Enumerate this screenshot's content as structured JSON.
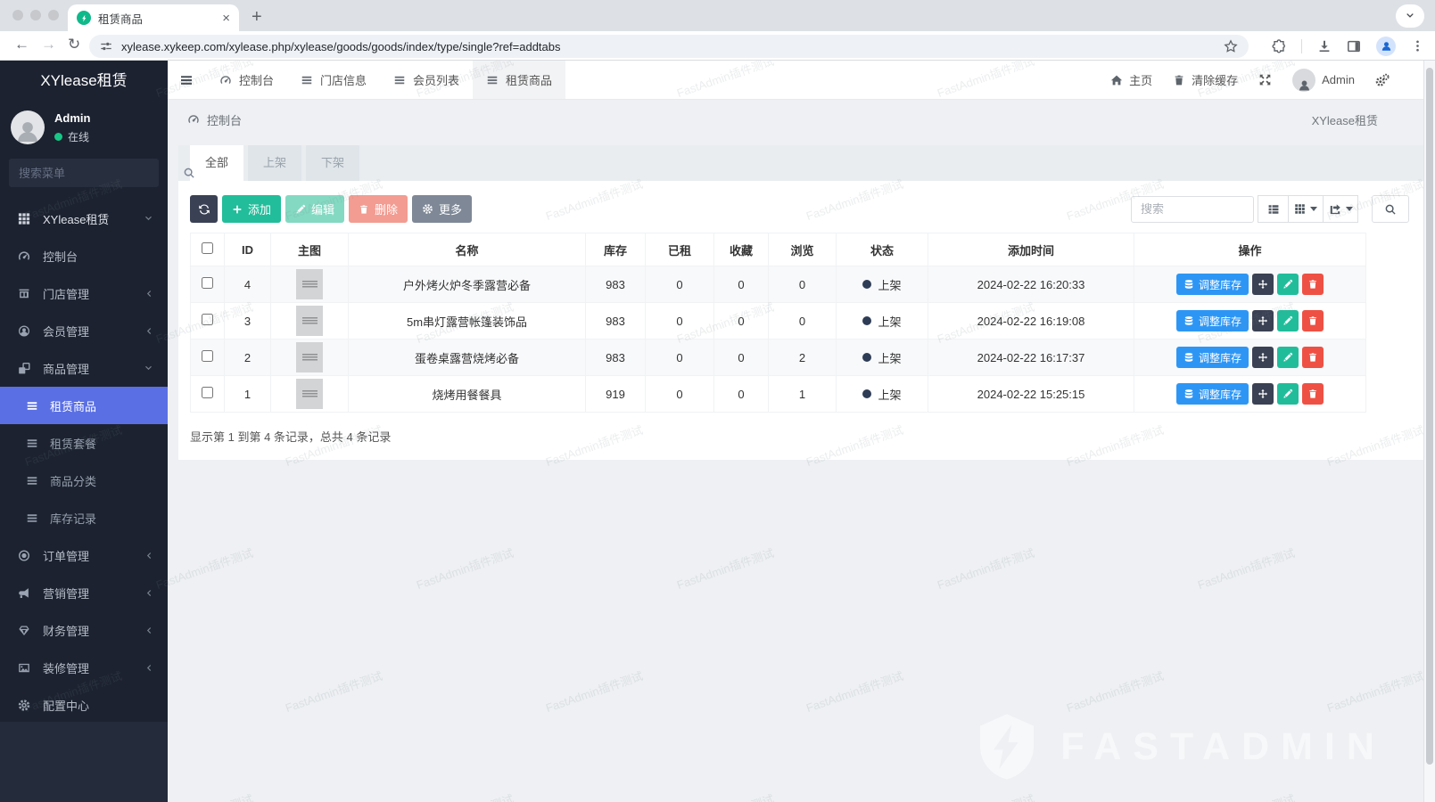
{
  "browser": {
    "tab_title": "租赁商品",
    "url": "xylease.xykeep.com/xylease.php/xylease/goods/goods/index/type/single?ref=addtabs"
  },
  "sidebar": {
    "brand": "XYlease租赁",
    "user": {
      "name": "Admin",
      "status": "在线"
    },
    "search_placeholder": "搜索菜单",
    "menu": [
      {
        "label": "XYlease租赁",
        "icon": "grid-icon",
        "chevron": "down",
        "group": true
      },
      {
        "label": "控制台",
        "icon": "dashboard-icon",
        "chevron": "none"
      },
      {
        "label": "门店管理",
        "icon": "store-icon",
        "chevron": "left"
      },
      {
        "label": "会员管理",
        "icon": "member-icon",
        "chevron": "left"
      },
      {
        "label": "商品管理",
        "icon": "goods-icon",
        "chevron": "down"
      },
      {
        "label": "租赁商品",
        "icon": "list-icon",
        "child": true,
        "active": true
      },
      {
        "label": "租赁套餐",
        "icon": "list-icon",
        "child": true
      },
      {
        "label": "商品分类",
        "icon": "list-icon",
        "child": true
      },
      {
        "label": "库存记录",
        "icon": "list-icon",
        "child": true
      },
      {
        "label": "订单管理",
        "icon": "order-icon",
        "chevron": "left"
      },
      {
        "label": "营销管理",
        "icon": "marketing-icon",
        "chevron": "left"
      },
      {
        "label": "财务管理",
        "icon": "finance-icon",
        "chevron": "left"
      },
      {
        "label": "装修管理",
        "icon": "decorate-icon",
        "chevron": "left"
      },
      {
        "label": "配置中心",
        "icon": "config-icon",
        "chevron": "none"
      }
    ]
  },
  "topnav": {
    "tabs": [
      {
        "label": "控制台",
        "icon": "dashboard-icon"
      },
      {
        "label": "门店信息",
        "icon": "list-icon"
      },
      {
        "label": "会员列表",
        "icon": "list-icon"
      },
      {
        "label": "租赁商品",
        "icon": "list-icon",
        "active": true
      }
    ],
    "home_label": "主页",
    "clear_cache_label": "清除缓存",
    "user_name": "Admin"
  },
  "breadcrumb": {
    "current": "控制台",
    "site_name": "XYlease租赁"
  },
  "filter_tabs": [
    {
      "label": "全部",
      "active": true
    },
    {
      "label": "上架"
    },
    {
      "label": "下架"
    }
  ],
  "toolbar": {
    "add_label": "添加",
    "edit_label": "编辑",
    "delete_label": "删除",
    "more_label": "更多",
    "search_placeholder": "搜索"
  },
  "table": {
    "columns": [
      "ID",
      "主图",
      "名称",
      "库存",
      "已租",
      "收藏",
      "浏览",
      "状态",
      "添加时间",
      "操作"
    ],
    "adjust_stock_label": "调整库存",
    "rows": [
      {
        "id": "4",
        "name": "户外烤火炉冬季露营必备",
        "stock": "983",
        "rented": "0",
        "favorites": "0",
        "views": "0",
        "status": "上架",
        "added_time": "2024-02-22 16:20:33"
      },
      {
        "id": "3",
        "name": "5m串灯露营帐篷装饰品",
        "stock": "983",
        "rented": "0",
        "favorites": "0",
        "views": "0",
        "status": "上架",
        "added_time": "2024-02-22 16:19:08"
      },
      {
        "id": "2",
        "name": "蛋卷桌露营烧烤必备",
        "stock": "983",
        "rented": "0",
        "favorites": "0",
        "views": "2",
        "status": "上架",
        "added_time": "2024-02-22 16:17:37"
      },
      {
        "id": "1",
        "name": "烧烤用餐餐具",
        "stock": "919",
        "rented": "0",
        "favorites": "0",
        "views": "1",
        "status": "上架",
        "added_time": "2024-02-22 15:25:15"
      }
    ],
    "summary": "显示第 1 到第 4 条记录，总共 4 条记录"
  },
  "watermark": {
    "text": "FastAdmin插件测试",
    "brand": "FASTADMIN"
  },
  "colors": {
    "sidebar_active": "#5a6fe4",
    "accent_green": "#22bd9a",
    "accent_blue": "#2d96f5",
    "danger_red": "#ee5144",
    "dark_navy": "#3a4154",
    "status_dot": "#2e3c55"
  }
}
